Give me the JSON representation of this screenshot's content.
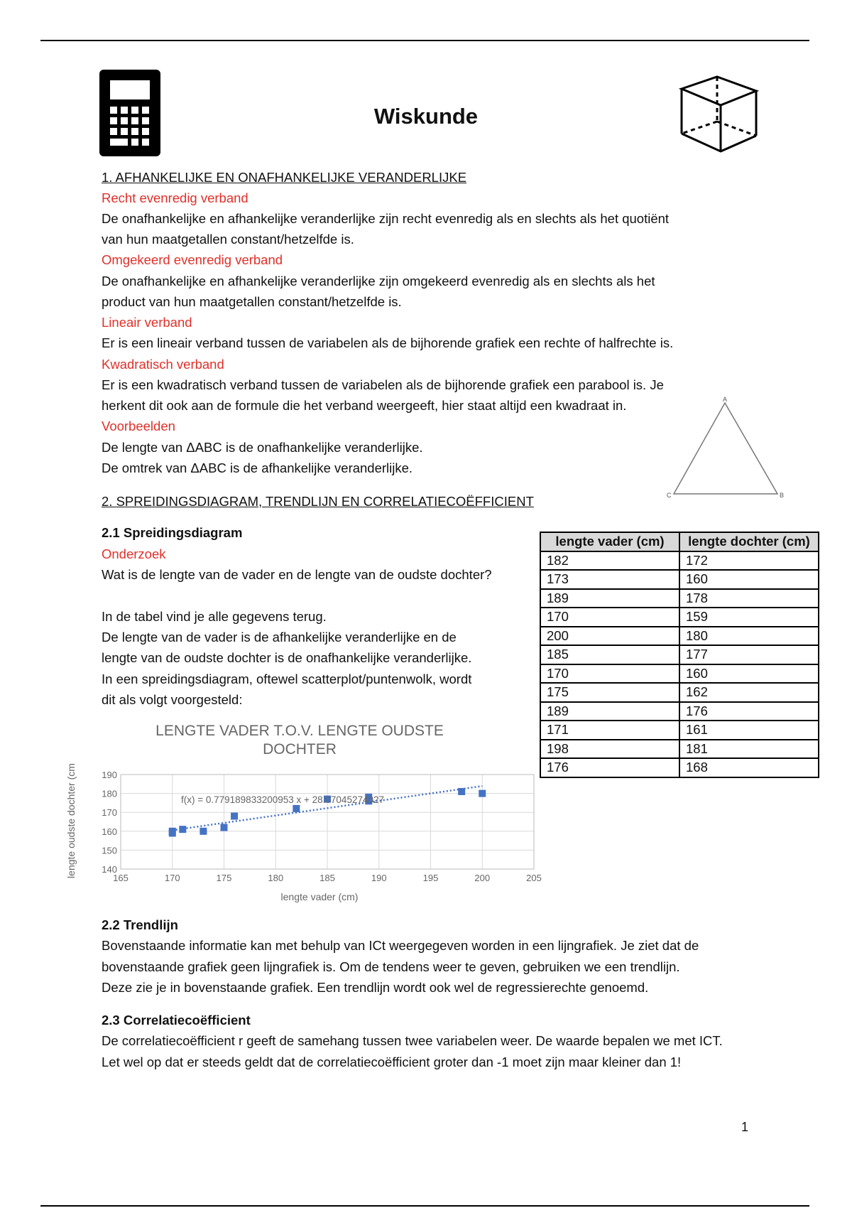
{
  "header": {
    "title": "Wiskunde",
    "left_icon": "calculator-icon",
    "right_icon": "cuboid-icon"
  },
  "section1": {
    "heading": "1. AFHANKELIJKE EN ONAFHANKELIJKE VERANDERLIJKE",
    "blocks": [
      {
        "subheading": "Recht evenredig verband",
        "lines": [
          "De onafhankelijke en afhankelijke veranderlijke zijn recht evenredig als en slechts als het quotiënt",
          "van hun maatgetallen constant/hetzelfde is."
        ]
      },
      {
        "subheading": "Omgekeerd evenredig verband",
        "lines": [
          "De onafhankelijke en afhankelijke veranderlijke zijn omgekeerd evenredig als en slechts als het",
          "product van hun maatgetallen constant/hetzelfde is."
        ]
      },
      {
        "subheading": "Lineair verband",
        "lines": [
          "Er is een lineair verband tussen de variabelen als de bijhorende grafiek een rechte of halfrechte is."
        ]
      },
      {
        "subheading": "Kwadratisch verband",
        "lines": [
          "Er is een kwadratisch verband tussen de variabelen als de bijhorende grafiek een parabool is. Je",
          "herkent dit ook aan de formule die het verband weergeeft, hier staat altijd een kwadraat in."
        ]
      },
      {
        "subheading": "Voorbeelden",
        "lines": [
          "De lengte van ΔABC is de onafhankelijke veranderlijke.",
          "De omtrek van ΔABC is de afhankelijke veranderlijke."
        ]
      }
    ],
    "triangle_labels": {
      "a": "A",
      "b": "B",
      "c": "C"
    }
  },
  "section2": {
    "heading": "2. SPREIDINGSDIAGRAM, TRENDLIJN EN CORRELATIECOËFFICIENT",
    "s21": {
      "heading": "2.1 Spreidingsdiagram",
      "subheading": "Onderzoek",
      "lines": [
        "Wat is de lengte van de vader en de lengte van de oudste dochter?",
        "",
        "In de tabel vind je alle gegevens terug.",
        "De lengte van de vader is de afhankelijke veranderlijke en de",
        "lengte van de oudste dochter is de onafhankelijke veranderlijke.",
        "In een spreidingsdiagram, oftewel scatterplot/puntenwolk, wordt",
        "dit als volgt voorgesteld:"
      ]
    },
    "table": {
      "headers": [
        "lengte vader (cm)",
        "lengte dochter (cm)"
      ],
      "rows": [
        [
          "182",
          "172"
        ],
        [
          "173",
          "160"
        ],
        [
          "189",
          "178"
        ],
        [
          "170",
          "159"
        ],
        [
          "200",
          "180"
        ],
        [
          "185",
          "177"
        ],
        [
          "170",
          "160"
        ],
        [
          "175",
          "162"
        ],
        [
          "189",
          "176"
        ],
        [
          "171",
          "161"
        ],
        [
          "198",
          "181"
        ],
        [
          "176",
          "168"
        ]
      ]
    },
    "s22": {
      "heading": "2.2 Trendlijn",
      "lines": [
        "Bovenstaande informatie kan met behulp van ICt weergegeven worden in een lijngrafiek. Je ziet dat de",
        "bovenstaande grafiek geen lijngrafiek is. Om de tendens weer te geven, gebruiken we een trendlijn.",
        "Deze zie je in bovenstaande grafiek. Een trendlijn wordt ook wel de regressierechte genoemd."
      ]
    },
    "s23": {
      "heading": "2.3 Correlatiecoëfficient",
      "lines": [
        "De correlatiecoëfficient r geeft de samehang tussen twee variabelen weer. De waarde bepalen we met ICT.",
        "Let wel op dat er steeds geldt dat de correlatiecoëfficient groter dan -1 moet zijn maar kleiner dan 1!"
      ]
    }
  },
  "chart_data": {
    "type": "scatter",
    "title_lines": [
      "LENGTE VADER T.O.V. LENGTE OUDSTE",
      "DOCHTER"
    ],
    "xlabel": "lengte vader (cm)",
    "ylabel": "lengte oudste dochter (cm",
    "xlim": [
      165,
      205
    ],
    "ylim": [
      140,
      190
    ],
    "xticks": [
      "165",
      "170",
      "175",
      "180",
      "185",
      "190",
      "195",
      "200",
      "205"
    ],
    "yticks": [
      "140",
      "150",
      "160",
      "170",
      "180",
      "190"
    ],
    "grid": true,
    "points": [
      [
        182,
        172
      ],
      [
        173,
        160
      ],
      [
        189,
        178
      ],
      [
        170,
        159
      ],
      [
        200,
        180
      ],
      [
        185,
        177
      ],
      [
        170,
        160
      ],
      [
        175,
        162
      ],
      [
        189,
        176
      ],
      [
        171,
        161
      ],
      [
        198,
        181
      ],
      [
        176,
        168
      ]
    ],
    "trendline": {
      "slope": 0.779189833200953,
      "intercept": 28.07045274027,
      "label": "f(x) = 0.779189833200953 x + 28.07045274027",
      "x_range": [
        170,
        200
      ]
    },
    "marker_color": "#4472c4"
  },
  "footer": {
    "page_number": "1"
  }
}
